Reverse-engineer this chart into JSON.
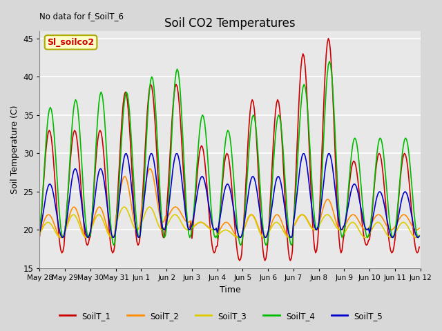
{
  "title": "Soil CO2 Temperatures",
  "xlabel": "Time",
  "ylabel": "Soil Temperature (C)",
  "annotation_top_left": "No data for f_SoilT_6",
  "legend_box_label": "Sl_soilco2",
  "ylim": [
    15,
    46
  ],
  "yticks": [
    15,
    20,
    25,
    30,
    35,
    40,
    45
  ],
  "fig_bg_color": "#d8d8d8",
  "plot_bg_color": "#e8e8e8",
  "line_colors": {
    "SoilT_1": "#cc0000",
    "SoilT_2": "#ff8c00",
    "SoilT_3": "#ddcc00",
    "SoilT_4": "#00bb00",
    "SoilT_5": "#0000cc"
  },
  "legend_labels": [
    "SoilT_1",
    "SoilT_2",
    "SoilT_3",
    "SoilT_4",
    "SoilT_5"
  ]
}
